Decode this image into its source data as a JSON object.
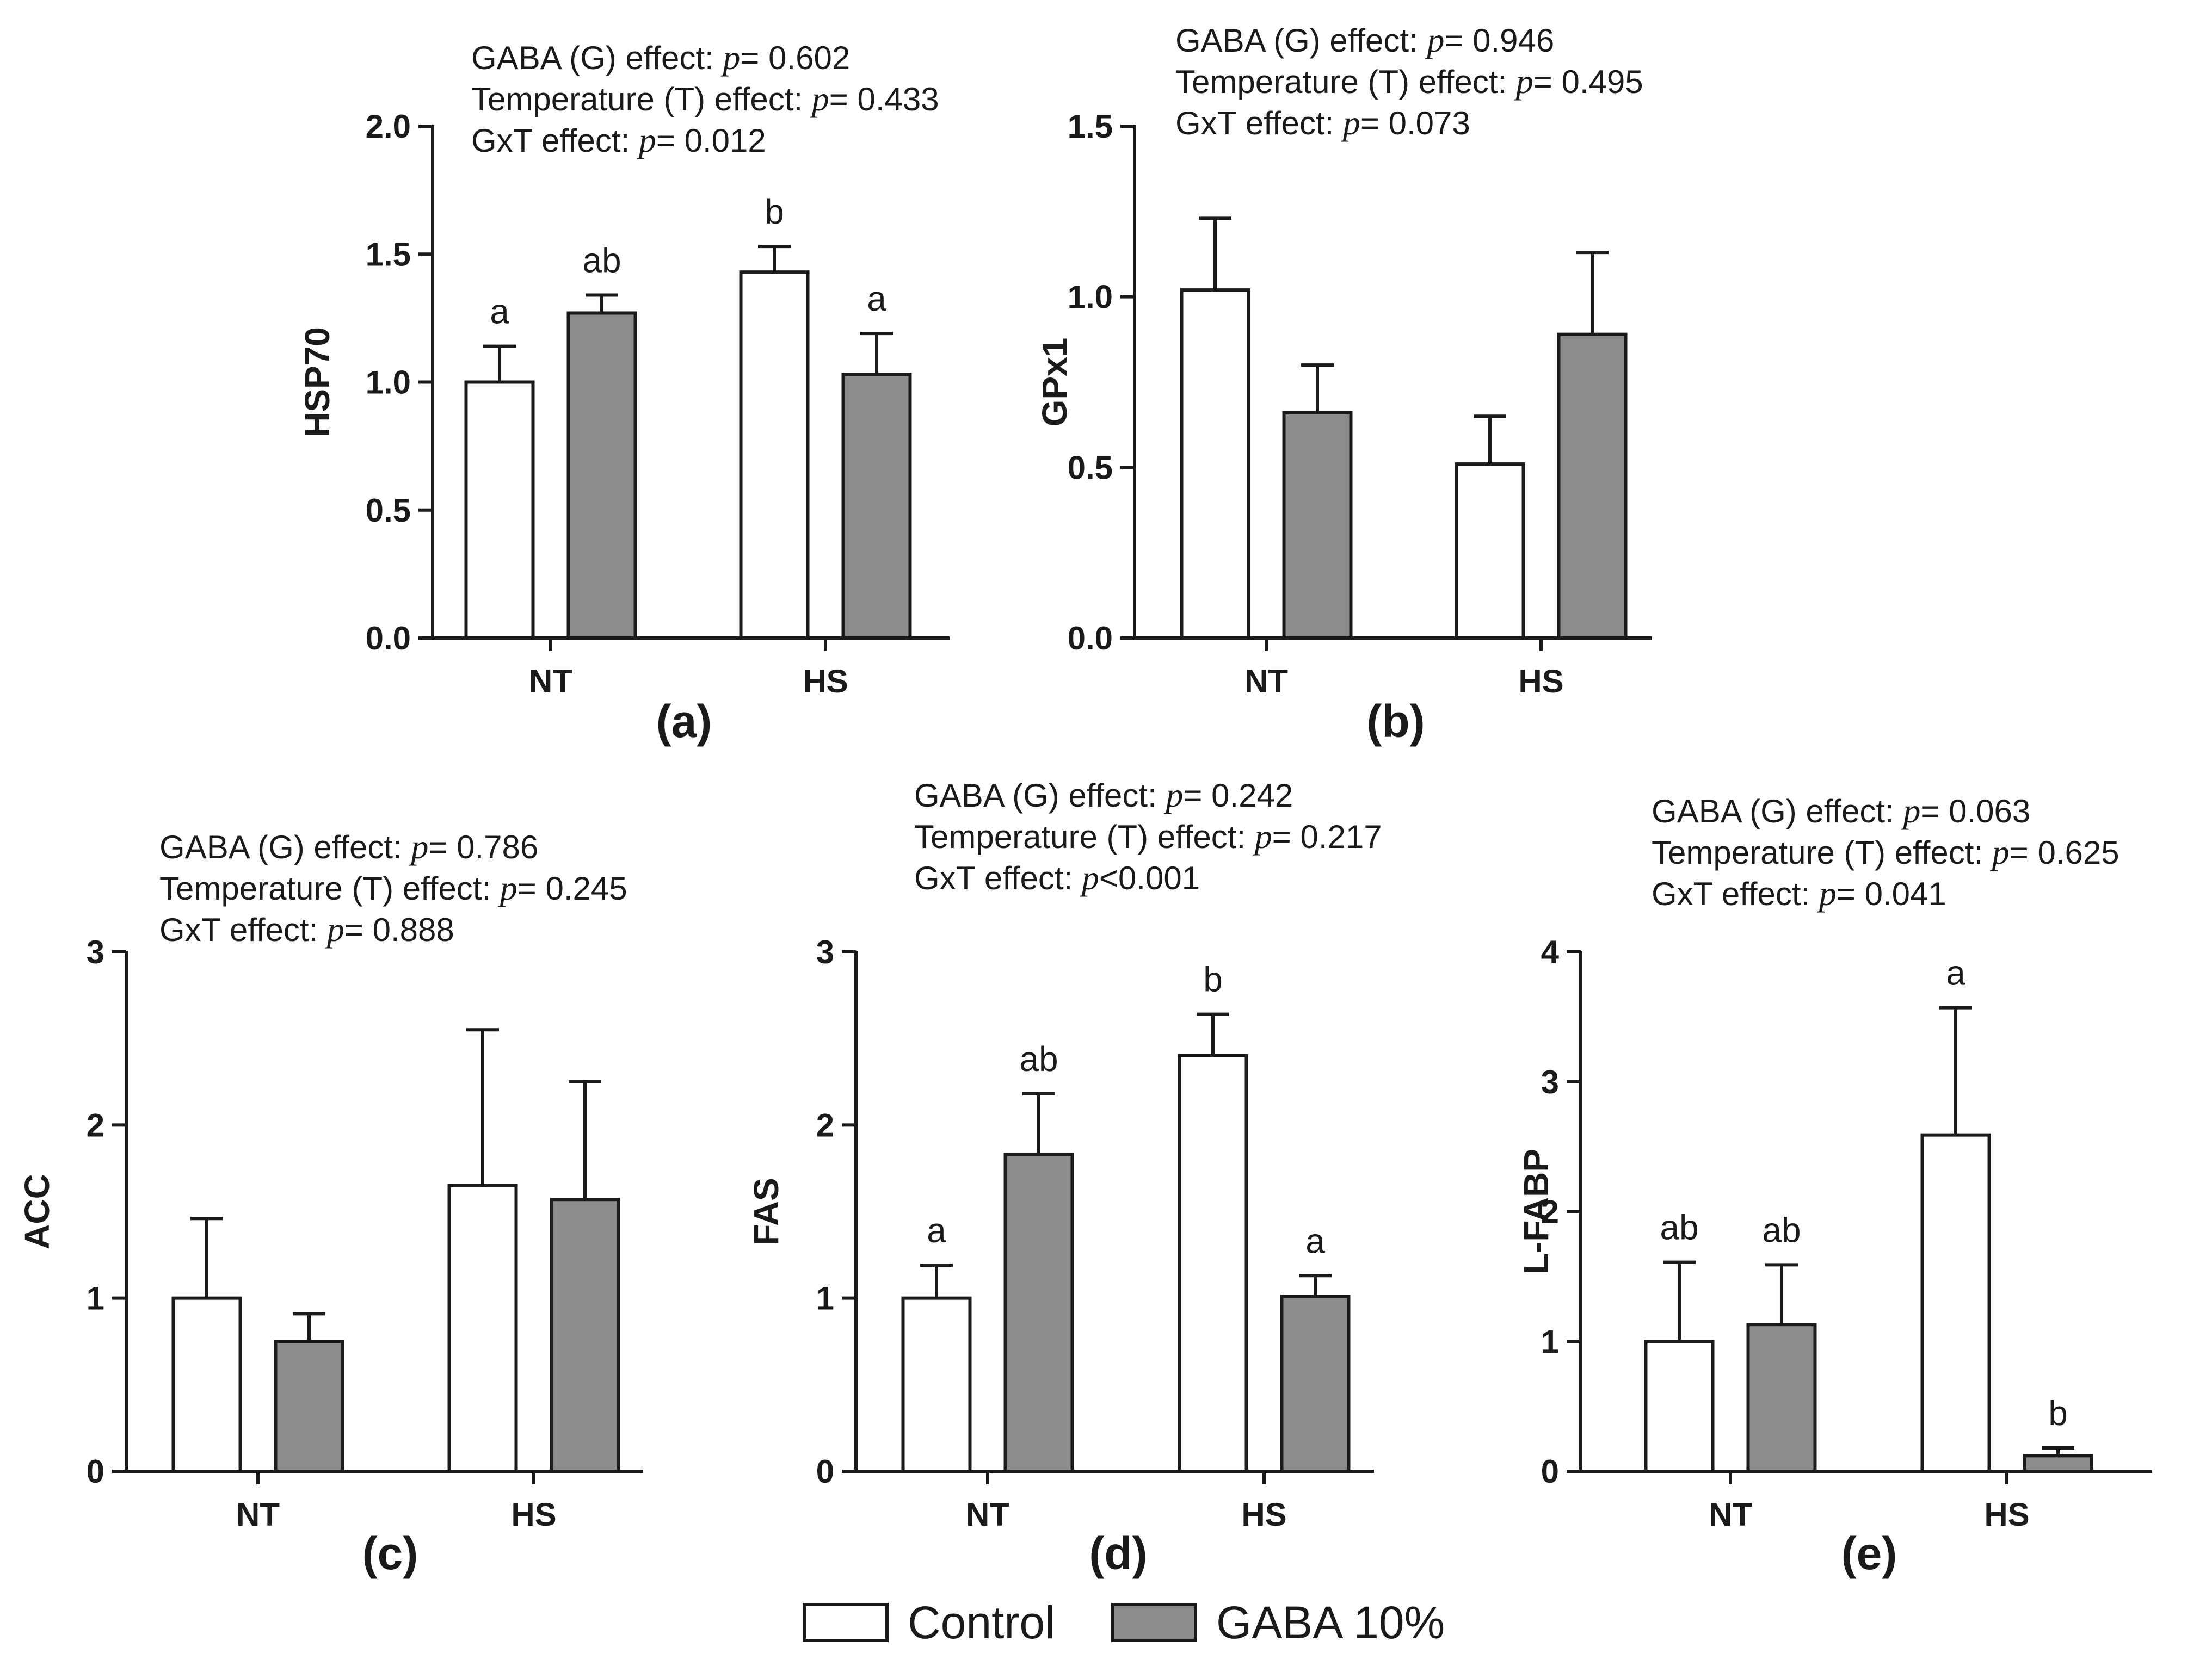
{
  "figure": {
    "legend": [
      {
        "label": "Control",
        "color": "#ffffff"
      },
      {
        "label": "GABA 10%",
        "color": "#8c8c8c"
      }
    ]
  },
  "chart_data": [
    {
      "type": "bar",
      "panel_label": "(a)",
      "ylabel": "HSP70",
      "categories": [
        "NT",
        "HS"
      ],
      "ylim": [
        0,
        2.0
      ],
      "yticks": [
        "0.0",
        "0.5",
        "1.0",
        "1.5",
        "2.0"
      ],
      "series": [
        {
          "name": "Control",
          "values": [
            1.0,
            1.43
          ],
          "errors": [
            0.14,
            0.1
          ],
          "letters": [
            "a",
            "b"
          ]
        },
        {
          "name": "GABA 10%",
          "values": [
            1.27,
            1.03
          ],
          "errors": [
            0.07,
            0.16
          ],
          "letters": [
            "ab",
            "a"
          ]
        }
      ],
      "stats": [
        {
          "label": "GABA (G) effect:",
          "p": "p",
          "value": "= 0.602"
        },
        {
          "label": "Temperature (T) effect:",
          "p": "p",
          "value": "= 0.433"
        },
        {
          "label": "GxT effect:",
          "p": "p",
          "value": "= 0.012"
        }
      ]
    },
    {
      "type": "bar",
      "panel_label": "(b)",
      "ylabel": "GPx1",
      "categories": [
        "NT",
        "HS"
      ],
      "ylim": [
        0,
        1.5
      ],
      "yticks": [
        "0.0",
        "0.5",
        "1.0",
        "1.5"
      ],
      "series": [
        {
          "name": "Control",
          "values": [
            1.02,
            0.51
          ],
          "errors": [
            0.21,
            0.14
          ],
          "letters": [
            "",
            ""
          ]
        },
        {
          "name": "GABA 10%",
          "values": [
            0.66,
            0.89
          ],
          "errors": [
            0.14,
            0.24
          ],
          "letters": [
            "",
            ""
          ]
        }
      ],
      "stats": [
        {
          "label": "GABA (G) effect:",
          "p": "p",
          "value": "= 0.946"
        },
        {
          "label": "Temperature (T) effect:",
          "p": "p",
          "value": "= 0.495"
        },
        {
          "label": "GxT effect:",
          "p": "p",
          "value": "= 0.073"
        }
      ]
    },
    {
      "type": "bar",
      "panel_label": "(c)",
      "ylabel": "ACC",
      "categories": [
        "NT",
        "HS"
      ],
      "ylim": [
        0,
        3
      ],
      "yticks": [
        "0",
        "1",
        "2",
        "3"
      ],
      "series": [
        {
          "name": "Control",
          "values": [
            1.0,
            1.65
          ],
          "errors": [
            0.46,
            0.9
          ],
          "letters": [
            "",
            ""
          ]
        },
        {
          "name": "GABA 10%",
          "values": [
            0.75,
            1.57
          ],
          "errors": [
            0.16,
            0.68
          ],
          "letters": [
            "",
            ""
          ]
        }
      ],
      "stats": [
        {
          "label": "GABA (G) effect:",
          "p": "p",
          "value": "= 0.786"
        },
        {
          "label": "Temperature (T) effect:",
          "p": "p",
          "value": "= 0.245"
        },
        {
          "label": "GxT effect:",
          "p": "p",
          "value": "= 0.888"
        }
      ]
    },
    {
      "type": "bar",
      "panel_label": "(d)",
      "ylabel": "FAS",
      "categories": [
        "NT",
        "HS"
      ],
      "ylim": [
        0,
        3
      ],
      "yticks": [
        "0",
        "1",
        "2",
        "3"
      ],
      "series": [
        {
          "name": "Control",
          "values": [
            1.0,
            2.4
          ],
          "errors": [
            0.19,
            0.24
          ],
          "letters": [
            "a",
            "b"
          ]
        },
        {
          "name": "GABA 10%",
          "values": [
            1.83,
            1.01
          ],
          "errors": [
            0.35,
            0.12
          ],
          "letters": [
            "ab",
            "a"
          ]
        }
      ],
      "stats": [
        {
          "label": "GABA (G) effect:",
          "p": "p",
          "value": "= 0.242"
        },
        {
          "label": "Temperature (T) effect:",
          "p": "p",
          "value": "= 0.217"
        },
        {
          "label": "GxT effect:",
          "p": "p",
          "value": "<0.001"
        }
      ]
    },
    {
      "type": "bar",
      "panel_label": "(e)",
      "ylabel": "L-FABP",
      "categories": [
        "NT",
        "HS"
      ],
      "ylim": [
        0,
        4
      ],
      "yticks": [
        "0",
        "1",
        "2",
        "3",
        "4"
      ],
      "series": [
        {
          "name": "Control",
          "values": [
            1.0,
            2.59
          ],
          "errors": [
            0.61,
            0.98
          ],
          "letters": [
            "ab",
            "a"
          ]
        },
        {
          "name": "GABA 10%",
          "values": [
            1.13,
            0.12
          ],
          "errors": [
            0.46,
            0.06
          ],
          "letters": [
            "ab",
            "b"
          ]
        }
      ],
      "stats": [
        {
          "label": "GABA (G) effect:",
          "p": "p",
          "value": "= 0.063"
        },
        {
          "label": "Temperature (T) effect:",
          "p": "p",
          "value": "= 0.625"
        },
        {
          "label": "GxT effect:",
          "p": "p",
          "value": "= 0.041"
        }
      ]
    }
  ]
}
